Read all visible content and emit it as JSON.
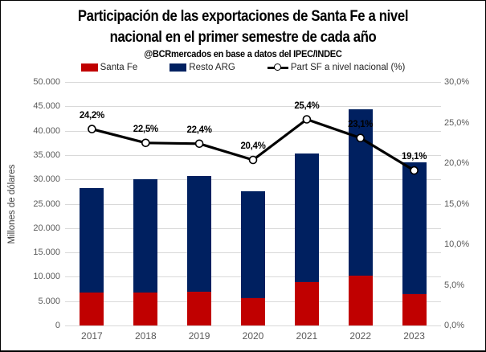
{
  "title_line1": "Participación de las exportaciones de Santa Fe a nivel",
  "title_line2": "nacional en el primer semestre de cada año",
  "subtitle": "@BCRmercados en base a datos del IPEC/INDEC",
  "colors": {
    "santa_fe": "#C00000",
    "resto_arg": "#002060",
    "line": "#000000",
    "gridline": "#D9D9D9",
    "tick_text": "#595959"
  },
  "legend": [
    {
      "label": "Santa Fe",
      "color": "#C00000",
      "type": "box"
    },
    {
      "label": "Resto ARG",
      "color": "#002060",
      "type": "box"
    },
    {
      "label": "Part SF a nivel nacional (%)",
      "color": "#000000",
      "type": "line-marker"
    }
  ],
  "chart_data": {
    "type": "combo-stacked-bar-line",
    "categories": [
      "2017",
      "2018",
      "2019",
      "2020",
      "2021",
      "2022",
      "2023"
    ],
    "bar_series": [
      {
        "name": "Santa Fe",
        "color": "#C00000",
        "values": [
          6850,
          6750,
          6900,
          5600,
          9000,
          10250,
          6400
        ]
      },
      {
        "name": "Resto ARG",
        "color": "#002060",
        "values": [
          21450,
          23250,
          23800,
          21900,
          26400,
          34150,
          27100
        ]
      }
    ],
    "bar_totals": [
      28300,
      30000,
      30700,
      27500,
      35400,
      44400,
      33500
    ],
    "line_series": {
      "name": "Part SF a nivel nacional (%)",
      "color": "#000000",
      "values": [
        24.2,
        22.5,
        22.4,
        20.4,
        25.4,
        23.1,
        19.1
      ],
      "labels": [
        "24,2%",
        "22,5%",
        "22,4%",
        "20,4%",
        "25,4%",
        "23,1%",
        "19,1%"
      ]
    },
    "left_axis": {
      "title": "Millones de dólares",
      "min": 0,
      "max": 50000,
      "step": 5000,
      "tick_labels": [
        "0",
        "5.000",
        "10.000",
        "15.000",
        "20.000",
        "25.000",
        "30.000",
        "35.000",
        "40.000",
        "45.000",
        "50.000"
      ]
    },
    "right_axis": {
      "min": 0,
      "max": 30,
      "step": 5,
      "tick_labels": [
        "0,0%",
        "5,0%",
        "10,0%",
        "15,0%",
        "20,0%",
        "25,0%",
        "30,0%"
      ]
    },
    "grid": "horizontal",
    "legend_position": "top"
  }
}
